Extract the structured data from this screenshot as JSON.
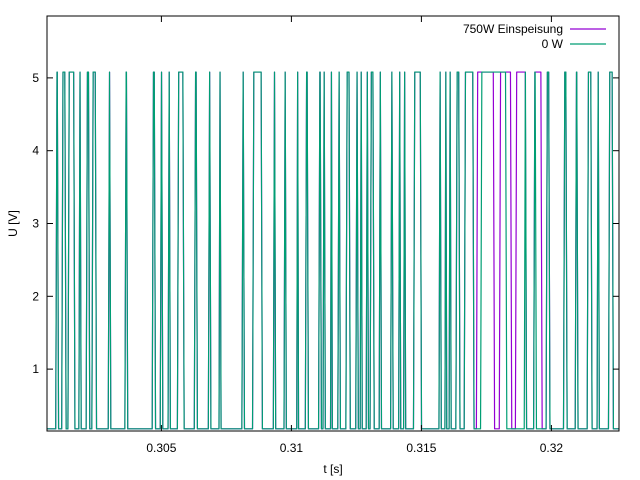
{
  "chart_data": {
    "type": "line",
    "xlabel": "t [s]",
    "ylabel": "U [V]",
    "xlim": [
      0.3006,
      0.3226
    ],
    "ylim": [
      0.15,
      5.85
    ],
    "xticks": [
      {
        "value": 0.305,
        "label": "0.305"
      },
      {
        "value": 0.31,
        "label": "0.31"
      },
      {
        "value": 0.315,
        "label": "0.315"
      },
      {
        "value": 0.32,
        "label": "0.32"
      }
    ],
    "yticks": [
      {
        "value": 1,
        "label": "1"
      },
      {
        "value": 2,
        "label": "2"
      },
      {
        "value": 3,
        "label": "3"
      },
      {
        "value": 4,
        "label": "4"
      },
      {
        "value": 5,
        "label": "5"
      }
    ],
    "grid": false,
    "legend_position": "top-right",
    "signal_levels": {
      "low": 0.18,
      "high": 5.08
    },
    "series": [
      {
        "name": "750W Einspeisung",
        "color": "#9400d3",
        "high_intervals": [
          [
            0.30096,
            0.30102
          ],
          [
            0.30119,
            0.30131
          ],
          [
            0.30143,
            0.30165
          ],
          [
            0.30185,
            0.30189
          ],
          [
            0.30213,
            0.30222
          ],
          [
            0.30235,
            0.30248
          ],
          [
            0.30298,
            0.30303
          ],
          [
            0.30362,
            0.30368
          ],
          [
            0.30467,
            0.30475
          ],
          [
            0.30498,
            0.30503
          ],
          [
            0.30528,
            0.30532
          ],
          [
            0.30564,
            0.30585
          ],
          [
            0.30629,
            0.30636
          ],
          [
            0.30683,
            0.30688
          ],
          [
            0.30724,
            0.30727
          ],
          [
            0.30812,
            0.30817
          ],
          [
            0.30853,
            0.30886
          ],
          [
            0.30933,
            0.30937
          ],
          [
            0.30974,
            0.30978
          ],
          [
            0.31023,
            0.31025
          ],
          [
            0.31056,
            0.31063
          ],
          [
            0.31107,
            0.31113
          ],
          [
            0.31124,
            0.31128
          ],
          [
            0.31153,
            0.31155
          ],
          [
            0.31181,
            0.31186
          ],
          [
            0.31212,
            0.31224
          ],
          [
            0.3125,
            0.31255
          ],
          [
            0.31267,
            0.3127
          ],
          [
            0.3129,
            0.31294
          ],
          [
            0.31305,
            0.31316
          ],
          [
            0.3134,
            0.31344
          ],
          [
            0.31384,
            0.31389
          ],
          [
            0.31415,
            0.31418
          ],
          [
            0.31434,
            0.31437
          ],
          [
            0.31472,
            0.31498
          ],
          [
            0.3157,
            0.31574
          ],
          [
            0.31593,
            0.31595
          ],
          [
            0.31609,
            0.31612
          ],
          [
            0.31635,
            0.31646
          ],
          [
            0.31667,
            0.317
          ],
          [
            0.31714,
            0.31779
          ],
          [
            0.31802,
            0.31845
          ],
          [
            0.31864,
            0.31902
          ],
          [
            0.31934,
            0.31962
          ],
          [
            0.31982,
            0.31992
          ],
          [
            0.32049,
            0.32058
          ],
          [
            0.32094,
            0.321
          ],
          [
            0.3214,
            0.32154
          ],
          [
            0.32178,
            0.32182
          ],
          [
            0.32222,
            0.32236
          ]
        ]
      },
      {
        "name": "0 W",
        "color": "#009e73",
        "high_intervals": [
          [
            0.30096,
            0.30102
          ],
          [
            0.30119,
            0.30131
          ],
          [
            0.30143,
            0.30165
          ],
          [
            0.30185,
            0.30189
          ],
          [
            0.30213,
            0.30222
          ],
          [
            0.30235,
            0.30248
          ],
          [
            0.30298,
            0.30303
          ],
          [
            0.30362,
            0.30368
          ],
          [
            0.30467,
            0.30475
          ],
          [
            0.30498,
            0.30503
          ],
          [
            0.30528,
            0.30532
          ],
          [
            0.30564,
            0.30585
          ],
          [
            0.30629,
            0.30636
          ],
          [
            0.30683,
            0.30688
          ],
          [
            0.30724,
            0.30727
          ],
          [
            0.30812,
            0.30817
          ],
          [
            0.30853,
            0.30886
          ],
          [
            0.30933,
            0.30937
          ],
          [
            0.30974,
            0.30978
          ],
          [
            0.31023,
            0.31025
          ],
          [
            0.31056,
            0.31063
          ],
          [
            0.31107,
            0.31113
          ],
          [
            0.31124,
            0.31128
          ],
          [
            0.31153,
            0.31155
          ],
          [
            0.31181,
            0.31186
          ],
          [
            0.31212,
            0.31224
          ],
          [
            0.3125,
            0.31255
          ],
          [
            0.31267,
            0.3127
          ],
          [
            0.3129,
            0.31294
          ],
          [
            0.31305,
            0.31316
          ],
          [
            0.3134,
            0.31344
          ],
          [
            0.31384,
            0.31389
          ],
          [
            0.31415,
            0.31418
          ],
          [
            0.31434,
            0.31437
          ],
          [
            0.31472,
            0.31498
          ],
          [
            0.3157,
            0.31574
          ],
          [
            0.31593,
            0.31595
          ],
          [
            0.31609,
            0.31612
          ],
          [
            0.31635,
            0.31646
          ],
          [
            0.31667,
            0.317
          ],
          [
            0.3173,
            0.31826
          ],
          [
            0.31898,
            0.31902
          ],
          [
            0.31934,
            0.3194
          ],
          [
            0.31982,
            0.31992
          ],
          [
            0.32049,
            0.32058
          ],
          [
            0.32094,
            0.321
          ],
          [
            0.3214,
            0.32154
          ],
          [
            0.32178,
            0.32182
          ],
          [
            0.32222,
            0.32236
          ]
        ]
      }
    ]
  }
}
